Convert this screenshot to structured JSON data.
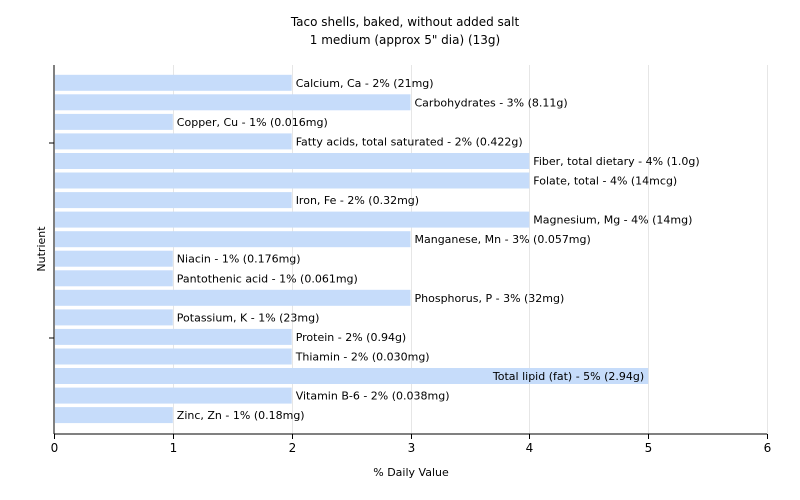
{
  "chart_data": {
    "type": "bar",
    "orientation": "horizontal",
    "title": "Taco shells, baked, without added salt",
    "subtitle": "1 medium (approx 5\" dia) (13g)",
    "xlabel": "% Daily Value",
    "ylabel": "Nutrient",
    "xlim": [
      0,
      6
    ],
    "xticks": [
      "0",
      "1",
      "2",
      "3",
      "4",
      "5",
      "6"
    ],
    "grid": "vertical",
    "bar_color": "#c6dcfa",
    "categories": [
      "Calcium, Ca",
      "Carbohydrates",
      "Copper, Cu",
      "Fatty acids, total saturated",
      "Fiber, total dietary",
      "Folate, total",
      "Iron, Fe",
      "Magnesium, Mg",
      "Manganese, Mn",
      "Niacin",
      "Pantothenic acid",
      "Phosphorus, P",
      "Potassium, K",
      "Protein",
      "Thiamin",
      "Total lipid (fat)",
      "Vitamin B-6",
      "Zinc, Zn"
    ],
    "values": [
      2,
      3,
      1,
      2,
      4,
      4,
      2,
      4,
      3,
      1,
      1,
      3,
      1,
      2,
      2,
      5,
      2,
      1
    ],
    "labels": [
      "Calcium, Ca - 2% (21mg)",
      "Carbohydrates - 3% (8.11g)",
      "Copper, Cu - 1% (0.016mg)",
      "Fatty acids, total saturated - 2% (0.422g)",
      "Fiber, total dietary - 4% (1.0g)",
      "Folate, total - 4% (14mcg)",
      "Iron, Fe - 2% (0.32mg)",
      "Magnesium, Mg - 4% (14mg)",
      "Manganese, Mn - 3% (0.057mg)",
      "Niacin - 1% (0.176mg)",
      "Pantothenic acid - 1% (0.061mg)",
      "Phosphorus, P - 3% (32mg)",
      "Potassium, K - 1% (23mg)",
      "Protein - 2% (0.94g)",
      "Thiamin - 2% (0.030mg)",
      "Total lipid (fat) - 5% (2.94g)",
      "Vitamin B-6 - 2% (0.038mg)",
      "Zinc, Zn - 1% (0.18mg)"
    ]
  }
}
